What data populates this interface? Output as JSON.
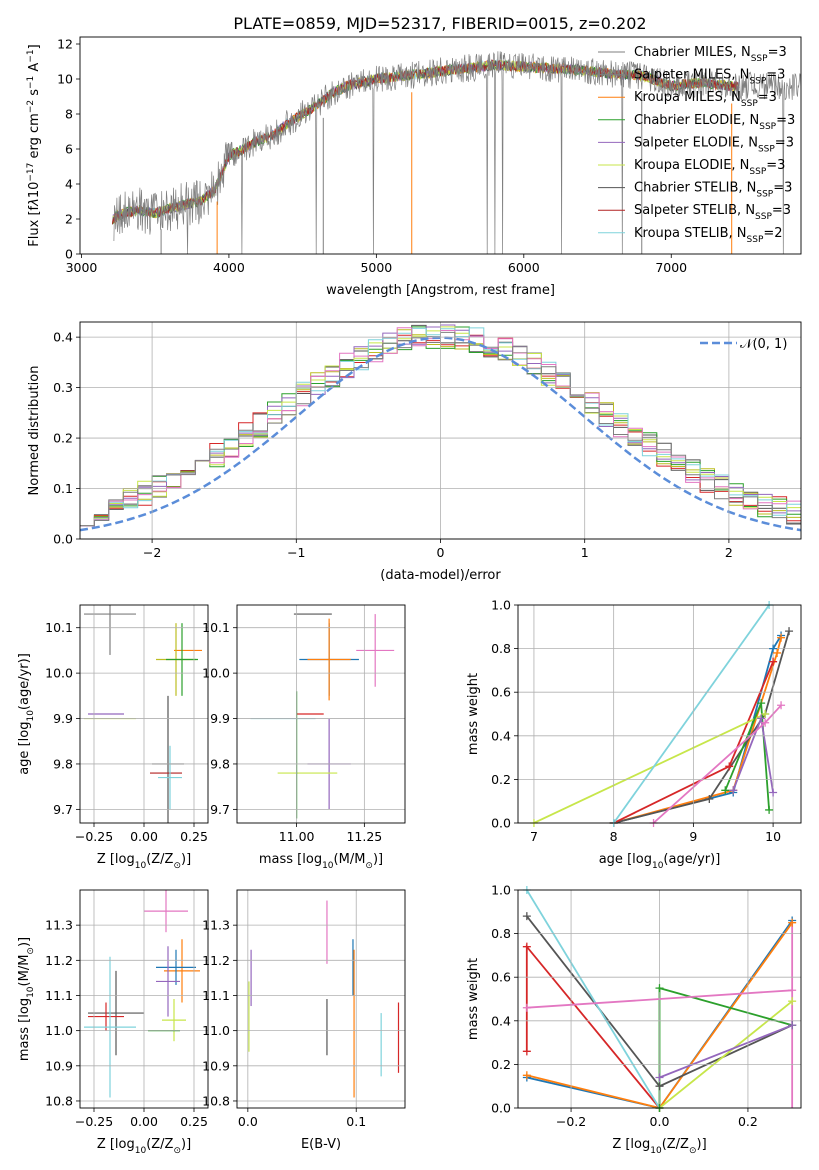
{
  "figure_title": "PLATE=0859, MJD=52317, FIBERID=0015, z=0.202",
  "colors": {
    "series": [
      "#7f7f7f",
      "#ff7f0e",
      "#bcbd22",
      "#2ca02c",
      "#9467bd",
      "#c7e64a",
      "#555555",
      "#b22222",
      "#7fd3dc",
      "#e377c2",
      "#d62728",
      "#1f77b4"
    ],
    "grid": "#b0b0b0",
    "gauss": "#5b8dd9"
  },
  "chart_data": [
    {
      "id": "spectrum",
      "type": "line",
      "title": "PLATE=0859, MJD=52317, FIBERID=0015, z=0.202",
      "xlabel": "wavelength [Angstrom, rest frame]",
      "ylabel_main": "Flux [f",
      "ylabel_tail": "10",
      "ylabel_exp": "−17",
      "ylabel_units": " erg cm",
      "xlim": [
        2990,
        7880
      ],
      "ylim": [
        0,
        12.4
      ],
      "xticks": [
        "3000",
        "4000",
        "5000",
        "6000",
        "7000"
      ],
      "yticks": [
        "0",
        "2",
        "4",
        "6",
        "8",
        "10",
        "12"
      ],
      "grid": false,
      "legend_position": "upper right",
      "legend": [
        {
          "label": "Chabrier MILES, N",
          "sub": "SSP",
          "tail": "=3"
        },
        {
          "label": "Salpeter MILES, N",
          "sub": "SSP",
          "tail": "=3"
        },
        {
          "label": "Kroupa MILES, N",
          "sub": "SSP",
          "tail": "=3"
        },
        {
          "label": "Chabrier ELODIE, N",
          "sub": "SSP",
          "tail": "=3"
        },
        {
          "label": "Salpeter ELODIE, N",
          "sub": "SSP",
          "tail": "=3"
        },
        {
          "label": "Kroupa ELODIE, N",
          "sub": "SSP",
          "tail": "=3"
        },
        {
          "label": "Chabrier STELIB, N",
          "sub": "SSP",
          "tail": "=3"
        },
        {
          "label": "Salpeter STELIB, N",
          "sub": "SSP",
          "tail": "=3"
        },
        {
          "label": "Kroupa STELIB, N",
          "sub": "SSP",
          "tail": "=2"
        }
      ],
      "continuum_x": [
        3210,
        3300,
        3400,
        3500,
        3600,
        3700,
        3800,
        3900,
        4000,
        4100,
        4200,
        4300,
        4400,
        4500,
        4600,
        4700,
        4800,
        5000,
        5200,
        5400,
        5600,
        5800,
        6000,
        6200,
        6400,
        6600,
        6800,
        7000,
        7200,
        7400,
        7450
      ],
      "continuum_y": [
        2.0,
        2.4,
        2.5,
        2.3,
        2.6,
        2.8,
        3.0,
        3.6,
        5.6,
        6.0,
        6.5,
        6.8,
        7.5,
        8.0,
        8.5,
        9.2,
        9.6,
        10.0,
        10.2,
        10.4,
        10.6,
        10.8,
        10.7,
        10.6,
        10.5,
        10.3,
        10.2,
        9.6,
        9.8,
        9.6,
        9.6
      ]
    },
    {
      "id": "residuals",
      "type": "histogram",
      "xlabel": "(data-model)/error",
      "ylabel": "Normed distribution",
      "xlim": [
        -2.5,
        2.5
      ],
      "ylim": [
        0,
        0.43
      ],
      "xticks": [
        "−2",
        "−1",
        "0",
        "1",
        "2"
      ],
      "yticks": [
        "0.0",
        "0.1",
        "0.2",
        "0.3",
        "0.4"
      ],
      "grid": true,
      "legend_position": "upper right",
      "legend_label": "𝒩(0, 1)"
    },
    {
      "id": "age_vs_Z",
      "type": "scatter",
      "xlabel": "Z [log",
      "xlabel_sub": "10",
      "xlabel_tail": "(Z/Z",
      "xlabel_end": ")]",
      "ylabel": "age  [log",
      "ylabel_sub": "10",
      "ylabel_tail": "(age/yr)]",
      "xlim": [
        -0.32,
        0.32
      ],
      "ylim": [
        9.67,
        10.15
      ],
      "xticks": [
        "−0.25",
        "0.00",
        "0.25"
      ],
      "yticks": [
        "9.7",
        "9.8",
        "9.9",
        "10.0",
        "10.1"
      ],
      "grid": true,
      "points": [
        {
          "x": -0.17,
          "xerr": 0.13,
          "y": 10.13,
          "yerr": 0.09,
          "color": 0
        },
        {
          "x": 0.22,
          "xerr": 0.07,
          "y": 10.05,
          "yerr": 0.0,
          "color": 1
        },
        {
          "x": 0.16,
          "xerr": 0.1,
          "y": 10.03,
          "yerr": 0.08,
          "color": 2
        },
        {
          "x": 0.19,
          "xerr": 0.08,
          "y": 10.03,
          "yerr": 0.08,
          "color": 3
        },
        {
          "x": -0.19,
          "xerr": 0.09,
          "y": 9.91,
          "yerr": 0.0,
          "color": 4
        },
        {
          "x": -0.17,
          "xerr": 0.13,
          "y": 9.9,
          "yerr": 0.0,
          "color": 5
        },
        {
          "x": 0.12,
          "xerr": 0.08,
          "y": 9.8,
          "yerr": 0.15,
          "color": 6
        },
        {
          "x": 0.11,
          "xerr": 0.08,
          "y": 9.78,
          "yerr": 0.0,
          "color": 7
        },
        {
          "x": 0.13,
          "xerr": 0.06,
          "y": 9.77,
          "yerr": 0.07,
          "color": 8
        }
      ]
    },
    {
      "id": "age_vs_mass",
      "type": "scatter",
      "xlabel": "mass [log",
      "xlabel_sub": "10",
      "xlabel_tail": "(M/M",
      "xlabel_end": ")]",
      "xlim": [
        10.78,
        11.4
      ],
      "ylim": [
        9.67,
        10.15
      ],
      "xticks": [
        "11.00",
        "11.25"
      ],
      "yticks": [
        "9.7",
        "9.8",
        "9.9",
        "10.0",
        "10.1"
      ],
      "grid": true
    },
    {
      "id": "mass_weight_vs_age",
      "type": "line",
      "xlabel": "age  [log",
      "xlabel_sub": "10",
      "xlabel_tail": "(age/yr)]",
      "ylabel": "mass weight",
      "xlim": [
        6.8,
        10.35
      ],
      "ylim": [
        0,
        1
      ],
      "xticks": [
        "7",
        "8",
        "9",
        "10"
      ],
      "yticks": [
        "0.0",
        "0.2",
        "0.4",
        "0.6",
        "0.8",
        "1.0"
      ],
      "grid": true,
      "series": [
        {
          "x": [
            8.0,
            9.5,
            10.0,
            10.1
          ],
          "y": [
            0.0,
            0.14,
            0.8,
            0.86
          ],
          "color": 11
        },
        {
          "x": [
            8.0,
            9.5,
            10.05,
            10.1
          ],
          "y": [
            0.0,
            0.15,
            0.78,
            0.85
          ],
          "color": 1
        },
        {
          "x": [
            8.0,
            9.2,
            9.9,
            10.2
          ],
          "y": [
            0.0,
            0.11,
            0.5,
            0.88
          ],
          "color": 6
        },
        {
          "x": [
            8.0,
            9.45,
            10.0
          ],
          "y": [
            0.0,
            0.26,
            0.74
          ],
          "color": 10
        },
        {
          "x": [
            7.0,
            9.9
          ],
          "y": [
            0.0,
            0.5
          ],
          "color": 5
        },
        {
          "x": [
            8.0,
            9.95
          ],
          "y": [
            0.0,
            1.0
          ],
          "color": 8
        },
        {
          "x": [
            9.4,
            9.85,
            9.95
          ],
          "y": [
            0.15,
            0.55,
            0.06
          ],
          "color": 3
        },
        {
          "x": [
            9.5,
            9.85,
            10.0
          ],
          "y": [
            0.15,
            0.48,
            0.14
          ],
          "color": 4
        },
        {
          "x": [
            8.5,
            9.9,
            10.1
          ],
          "y": [
            0.0,
            0.46,
            0.54
          ],
          "color": 9
        }
      ]
    },
    {
      "id": "mass_vs_Z",
      "type": "scatter",
      "xlabel": "Z [log",
      "xlabel_sub": "10",
      "xlabel_tail": "(Z/Z",
      "xlabel_end": ")]",
      "ylabel": "mass [log",
      "ylabel_sub": "10",
      "ylabel_tail": "(M/M",
      "ylabel_end": ")]",
      "xlim": [
        -0.32,
        0.32
      ],
      "ylim": [
        10.78,
        11.4
      ],
      "xticks": [
        "−0.25",
        "0.00",
        "0.25"
      ],
      "yticks": [
        "10.8",
        "10.9",
        "11.0",
        "11.1",
        "11.2",
        "11.3"
      ],
      "grid": true
    },
    {
      "id": "mass_vs_ebv",
      "type": "scatter",
      "xlabel": "E(B-V)",
      "xlim": [
        -0.01,
        0.145
      ],
      "ylim": [
        10.78,
        11.4
      ],
      "xticks": [
        "0.0",
        "0.1"
      ],
      "yticks": [
        "10.8",
        "10.9",
        "11.0",
        "11.1",
        "11.2",
        "11.3"
      ],
      "grid": true
    },
    {
      "id": "mass_weight_vs_Z",
      "type": "line",
      "xlabel": "Z [log",
      "xlabel_sub": "10",
      "xlabel_tail": "(Z/Z",
      "xlabel_end": ")]",
      "ylabel": "mass weight",
      "xlim": [
        -0.32,
        0.32
      ],
      "ylim": [
        0,
        1
      ],
      "xticks": [
        "−0.2",
        "0.0",
        "0.2"
      ],
      "yticks": [
        "0.0",
        "0.2",
        "0.4",
        "0.6",
        "0.8",
        "1.0"
      ],
      "grid": true,
      "series": [
        {
          "x": [
            -0.3,
            0.0,
            0.3
          ],
          "y": [
            0.14,
            0.0,
            0.86
          ],
          "color": 11
        },
        {
          "x": [
            -0.3,
            0.0,
            0.3
          ],
          "y": [
            0.15,
            0.0,
            0.85
          ],
          "color": 1
        },
        {
          "x": [
            -0.3,
            0.0,
            0.3
          ],
          "y": [
            0.88,
            0.1,
            0.38
          ],
          "color": 6
        },
        {
          "x": [
            -0.3,
            -0.3,
            0.0
          ],
          "y": [
            0.26,
            0.74,
            0.0
          ],
          "color": 10
        },
        {
          "x": [
            0.0,
            0.3
          ],
          "y": [
            0.0,
            0.49
          ],
          "color": 5
        },
        {
          "x": [
            -0.3,
            0.0
          ],
          "y": [
            1.0,
            0.0
          ],
          "color": 8
        },
        {
          "x": [
            0.0,
            0.0,
            0.3
          ],
          "y": [
            0.0,
            0.55,
            0.38
          ],
          "color": 3
        },
        {
          "x": [
            0.0,
            0.3
          ],
          "y": [
            0.14,
            0.38
          ],
          "color": 4
        },
        {
          "x": [
            -0.3,
            0.3
          ],
          "y": [
            0.46,
            0.54
          ],
          "color": 9
        }
      ]
    }
  ]
}
